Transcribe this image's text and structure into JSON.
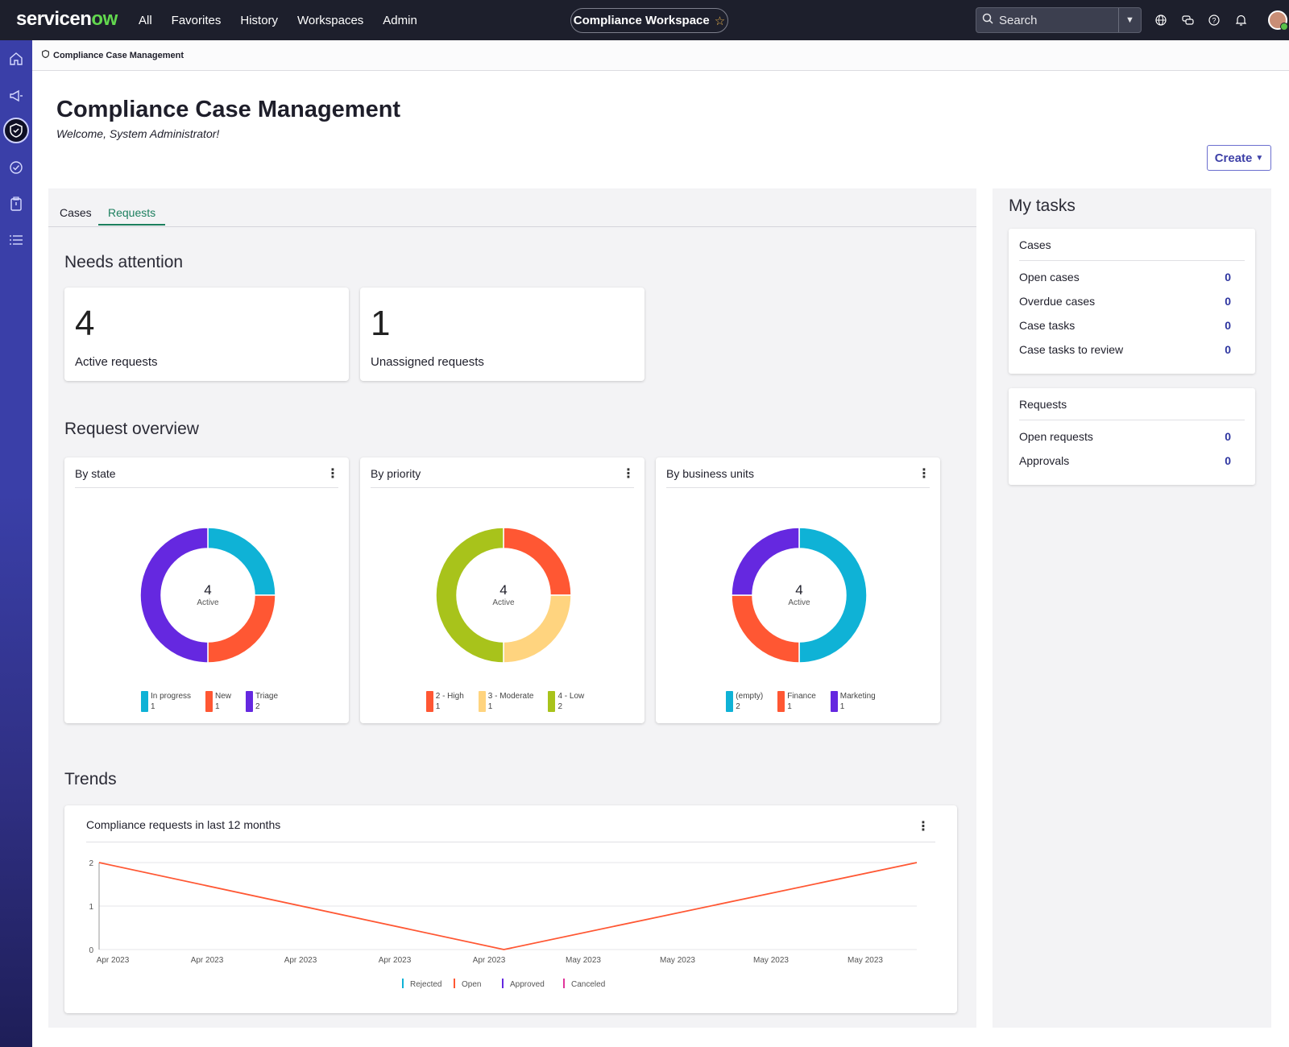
{
  "topbar": {
    "logo_prefix": "servicen",
    "logo_ow": "ow",
    "nav": [
      "All",
      "Favorites",
      "History",
      "Workspaces",
      "Admin"
    ],
    "workspace": "Compliance Workspace",
    "search_label": "Search",
    "icons": [
      "globe-icon",
      "chat-icon",
      "help-icon",
      "bell-icon"
    ]
  },
  "sidebar": {
    "icons": [
      "home-icon",
      "megaphone-icon",
      "shield-icon",
      "check-circle-icon",
      "clipboard-icon",
      "list-icon"
    ],
    "active": "shield-icon"
  },
  "breadcrumb": "Compliance Case Management",
  "header": {
    "title": "Compliance Case Management",
    "welcome": "Welcome, System Administrator!",
    "create_label": "Create"
  },
  "tabs": [
    {
      "label": "Cases",
      "selected": false
    },
    {
      "label": "Requests",
      "selected": true
    }
  ],
  "needs_attention": {
    "title": "Needs attention",
    "cards": [
      {
        "value": "4",
        "label": "Active requests"
      },
      {
        "value": "1",
        "label": "Unassigned requests"
      }
    ]
  },
  "request_overview": {
    "title": "Request overview"
  },
  "trends": {
    "title": "Trends",
    "chart_title": "Compliance requests in last 12 months"
  },
  "chart_data": [
    {
      "type": "donut",
      "title": "By state",
      "center_value": "4",
      "center_label": "Active",
      "slices": [
        {
          "label": "In progress",
          "value": 1,
          "color": "#0fb2d6"
        },
        {
          "label": "New",
          "value": 1,
          "color": "#ff5733"
        },
        {
          "label": "Triage",
          "value": 2,
          "color": "#6528e0"
        }
      ]
    },
    {
      "type": "donut",
      "title": "By priority",
      "center_value": "4",
      "center_label": "Active",
      "slices": [
        {
          "label": "2 - High",
          "value": 1,
          "color": "#ff5733"
        },
        {
          "label": "3 - Moderate",
          "value": 1,
          "color": "#ffd47f"
        },
        {
          "label": "4 - Low",
          "value": 2,
          "color": "#a8c31b"
        }
      ]
    },
    {
      "type": "donut",
      "title": "By business units",
      "center_value": "4",
      "center_label": "Active",
      "slices": [
        {
          "label": "(empty)",
          "value": 2,
          "color": "#0fb2d6"
        },
        {
          "label": "Finance",
          "value": 1,
          "color": "#ff5733"
        },
        {
          "label": "Marketing",
          "value": 1,
          "color": "#6528e0"
        }
      ]
    },
    {
      "type": "line",
      "title": "Compliance requests in last 12 months",
      "x_tick_labels": [
        "Apr 2023",
        "Apr 2023",
        "Apr 2023",
        "Apr 2023",
        "Apr 2023",
        "May 2023",
        "May 2023",
        "May 2023",
        "May 2023"
      ],
      "ylim": [
        0,
        2
      ],
      "y_ticks": [
        0,
        1,
        2
      ],
      "series": [
        {
          "name": "Rejected",
          "color": "#0fb2d6",
          "values": []
        },
        {
          "name": "Open",
          "color": "#ff5733",
          "points": [
            {
              "x": 0,
              "y": 2
            },
            {
              "x": 0.495,
              "y": 0
            },
            {
              "x": 1,
              "y": 2
            }
          ]
        },
        {
          "name": "Approved",
          "color": "#6528e0",
          "values": []
        },
        {
          "name": "Canceled",
          "color": "#e0359b",
          "values": []
        }
      ]
    }
  ],
  "my_tasks": {
    "title": "My tasks",
    "cases": {
      "header": "Cases",
      "rows": [
        {
          "label": "Open cases",
          "value": "0"
        },
        {
          "label": "Overdue cases",
          "value": "0"
        },
        {
          "label": "Case tasks",
          "value": "0"
        },
        {
          "label": "Case tasks to review",
          "value": "0"
        }
      ]
    },
    "requests": {
      "header": "Requests",
      "rows": [
        {
          "label": "Open requests",
          "value": "0"
        },
        {
          "label": "Approvals",
          "value": "0"
        }
      ]
    }
  }
}
